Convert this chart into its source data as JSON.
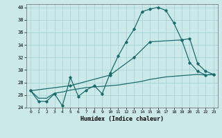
{
  "xlabel": "Humidex (Indice chaleur)",
  "background_color": "#cce9e9",
  "grid_color": "#aad4d4",
  "line_color": "#1a6b6b",
  "xlim": [
    -0.5,
    23.5
  ],
  "ylim": [
    24,
    40.5
  ],
  "xticks": [
    0,
    1,
    2,
    3,
    4,
    5,
    6,
    7,
    8,
    9,
    10,
    11,
    12,
    13,
    14,
    15,
    16,
    17,
    18,
    19,
    20,
    21,
    22,
    23
  ],
  "yticks": [
    24,
    26,
    28,
    30,
    32,
    34,
    36,
    38,
    40
  ],
  "curve1_x": [
    0,
    1,
    2,
    3,
    4,
    5,
    6,
    7,
    8,
    9,
    10,
    11,
    12,
    13,
    14,
    15,
    16,
    17,
    18,
    19,
    20,
    21,
    22,
    23
  ],
  "curve1_y": [
    26.7,
    25.0,
    25.0,
    26.2,
    24.3,
    28.8,
    25.8,
    26.8,
    27.5,
    26.2,
    29.5,
    32.2,
    34.5,
    36.5,
    39.3,
    39.7,
    40.0,
    39.5,
    37.5,
    34.8,
    31.2,
    29.8,
    29.2,
    29.3
  ],
  "curve2_x": [
    0,
    1,
    2,
    3,
    4,
    5,
    6,
    7,
    8,
    9,
    10,
    11,
    12,
    13,
    14,
    15,
    16,
    17,
    18,
    19,
    20,
    21,
    22,
    23
  ],
  "curve2_y": [
    26.7,
    25.5,
    25.5,
    26.3,
    26.5,
    26.8,
    27.0,
    27.2,
    27.3,
    27.4,
    27.5,
    27.6,
    27.8,
    28.0,
    28.2,
    28.5,
    28.7,
    28.9,
    29.0,
    29.1,
    29.2,
    29.3,
    29.2,
    29.3
  ],
  "curve3_x": [
    0,
    5,
    10,
    13,
    15,
    19,
    20,
    21,
    22,
    23
  ],
  "curve3_y": [
    26.7,
    27.5,
    29.2,
    32.0,
    34.5,
    34.8,
    35.0,
    31.0,
    29.8,
    29.3
  ]
}
